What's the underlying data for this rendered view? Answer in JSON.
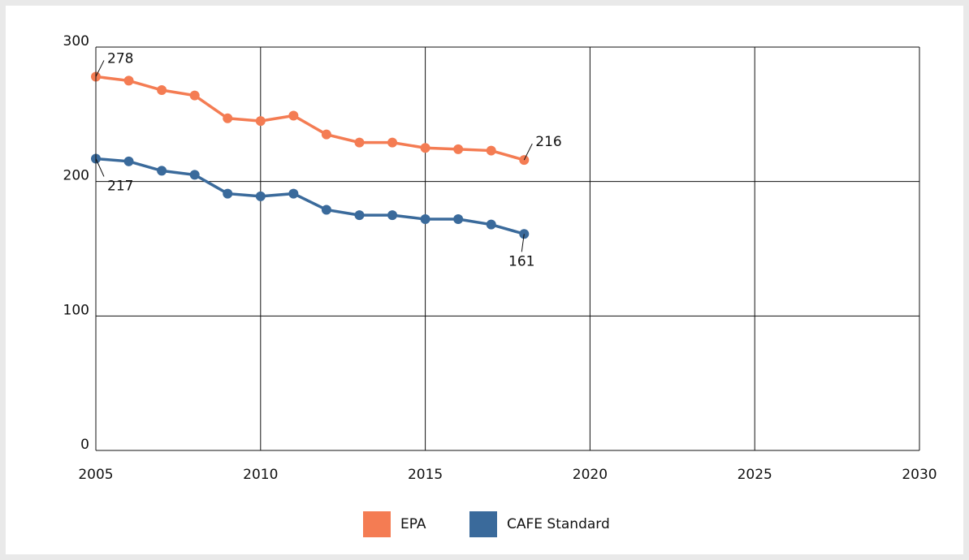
{
  "chart_data": {
    "type": "line",
    "x": [
      2005,
      2006,
      2007,
      2008,
      2009,
      2010,
      2011,
      2012,
      2013,
      2014,
      2015,
      2016,
      2017,
      2018
    ],
    "series": [
      {
        "name": "EPA",
        "color": "#f47c53",
        "values": [
          278,
          275,
          268,
          264,
          247,
          245,
          249,
          235,
          229,
          229,
          225,
          224,
          223,
          216
        ]
      },
      {
        "name": "CAFE Standard",
        "color": "#3a6a9b",
        "values": [
          217,
          215,
          208,
          205,
          191,
          189,
          191,
          179,
          175,
          175,
          172,
          172,
          168,
          161
        ]
      }
    ],
    "xlim": [
      2005,
      2030
    ],
    "xticks": [
      2005,
      2010,
      2015,
      2020,
      2025,
      2030
    ],
    "ylim": [
      0,
      300
    ],
    "yticks": [
      0,
      100,
      200,
      300
    ],
    "grid": true,
    "legend": "bottom"
  }
}
